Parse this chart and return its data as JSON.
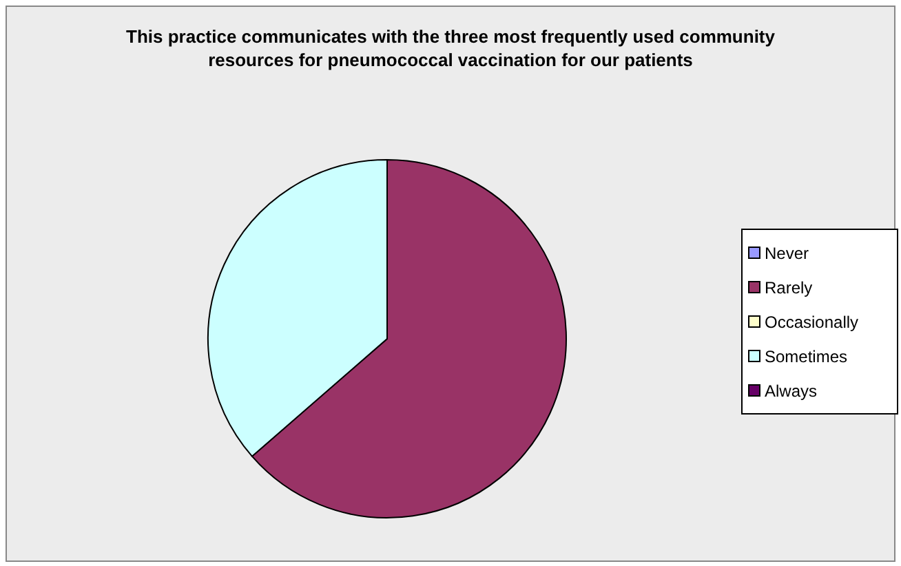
{
  "chart_data": {
    "type": "pie",
    "title": "This practice communicates with the three most frequently used community resources for pneumococcal vaccination for our patients",
    "categories": [
      "Never",
      "Rarely",
      "Occasionally",
      "Sometimes",
      "Always"
    ],
    "values": [
      0,
      63.6,
      0,
      36.4,
      0
    ],
    "colors": [
      "#9999ff",
      "#993366",
      "#ffffcc",
      "#ccffff",
      "#660066"
    ],
    "legend": "right"
  }
}
